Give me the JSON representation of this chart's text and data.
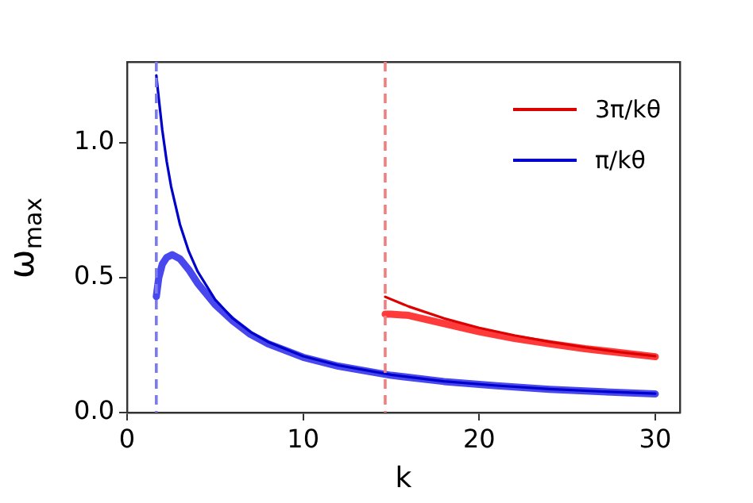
{
  "chart_data": {
    "type": "line",
    "xlabel": "k",
    "ylabel": "ω$_{max}$",
    "xlim": [
      0,
      31.4
    ],
    "ylim": [
      0,
      1.3
    ],
    "xticks": [
      0,
      10,
      20,
      30
    ],
    "yticks": [
      {
        "value": 0,
        "label": "0.0"
      },
      {
        "value": 0.5,
        "label": "0.5"
      },
      {
        "value": 1,
        "label": "1.0"
      }
    ],
    "grid": false,
    "legend": "top right",
    "marker": "none",
    "line_style": "solid",
    "series": [
      {
        "name": "3π/kθ",
        "color": "#dd0000",
        "x": [
          14.66,
          16,
          18,
          20,
          22,
          24,
          26,
          28,
          30
        ],
        "values": [
          0.429,
          0.393,
          0.349,
          0.314,
          0.286,
          0.262,
          0.242,
          0.224,
          0.209
        ]
      },
      {
        "name": "π/kθ",
        "color": "#0000cc",
        "x": [
          1.66,
          1.8,
          2,
          2.25,
          2.5,
          3,
          3.5,
          4,
          5,
          6,
          7,
          8,
          10,
          12,
          15,
          18,
          21,
          24,
          27,
          30
        ],
        "values": [
          1.25,
          1.164,
          1.047,
          0.931,
          0.838,
          0.698,
          0.598,
          0.524,
          0.419,
          0.349,
          0.299,
          0.262,
          0.209,
          0.175,
          0.14,
          0.116,
          0.1,
          0.087,
          0.078,
          0.07
        ]
      },
      {
        "color": "#ff3a3a",
        "x": [
          14.66,
          15,
          16,
          18,
          20,
          22,
          24,
          26,
          28,
          30
        ],
        "values": [
          0.365,
          0.365,
          0.36,
          0.33,
          0.3,
          0.275,
          0.255,
          0.237,
          0.222,
          0.207
        ]
      },
      {
        "color": "#4848ee",
        "x": [
          1.66,
          1.8,
          2,
          2.25,
          2.56,
          3,
          3.5,
          4,
          5,
          6,
          7,
          8,
          10,
          12,
          15,
          18,
          21,
          24,
          27,
          30
        ],
        "values": [
          0.43,
          0.5,
          0.55,
          0.575,
          0.585,
          0.57,
          0.53,
          0.48,
          0.4,
          0.34,
          0.29,
          0.255,
          0.205,
          0.172,
          0.138,
          0.115,
          0.099,
          0.086,
          0.077,
          0.069
        ]
      }
    ],
    "ref_lines": [
      {
        "axis": "x",
        "value": 1.66,
        "color": "#7b7bef",
        "line_style": "dashed"
      },
      {
        "axis": "x",
        "value": 14.66,
        "color": "#f08080",
        "line_style": "dashed"
      }
    ]
  }
}
